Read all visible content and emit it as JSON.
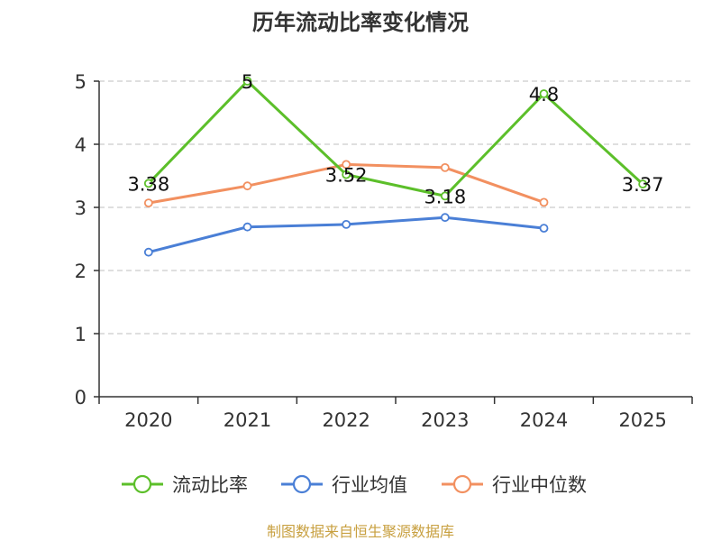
{
  "chart_data": {
    "type": "line",
    "title": "历年流动比率变化情况",
    "categories": [
      "2020",
      "2021",
      "2022",
      "2023",
      "2024",
      "2025"
    ],
    "ylim": [
      0,
      5
    ],
    "yticks": [
      "0",
      "1",
      "2",
      "3",
      "4",
      "5"
    ],
    "grid": true,
    "legend_position": "bottom",
    "series": [
      {
        "name": "流动比率",
        "color": "#5cbf2a",
        "values": [
          3.38,
          5,
          3.52,
          3.18,
          4.8,
          3.37
        ],
        "labels": [
          "3.38",
          "5",
          "3.52",
          "3.18",
          "4.8",
          "3.37"
        ]
      },
      {
        "name": "行业均值",
        "color": "#4a7fd6",
        "values": [
          2.29,
          2.69,
          2.73,
          2.84,
          2.67,
          null
        ]
      },
      {
        "name": "行业中位数",
        "color": "#f29060",
        "values": [
          3.07,
          3.34,
          3.68,
          3.63,
          3.08,
          null
        ]
      }
    ]
  },
  "source": "制图数据来自恒生聚源数据库"
}
